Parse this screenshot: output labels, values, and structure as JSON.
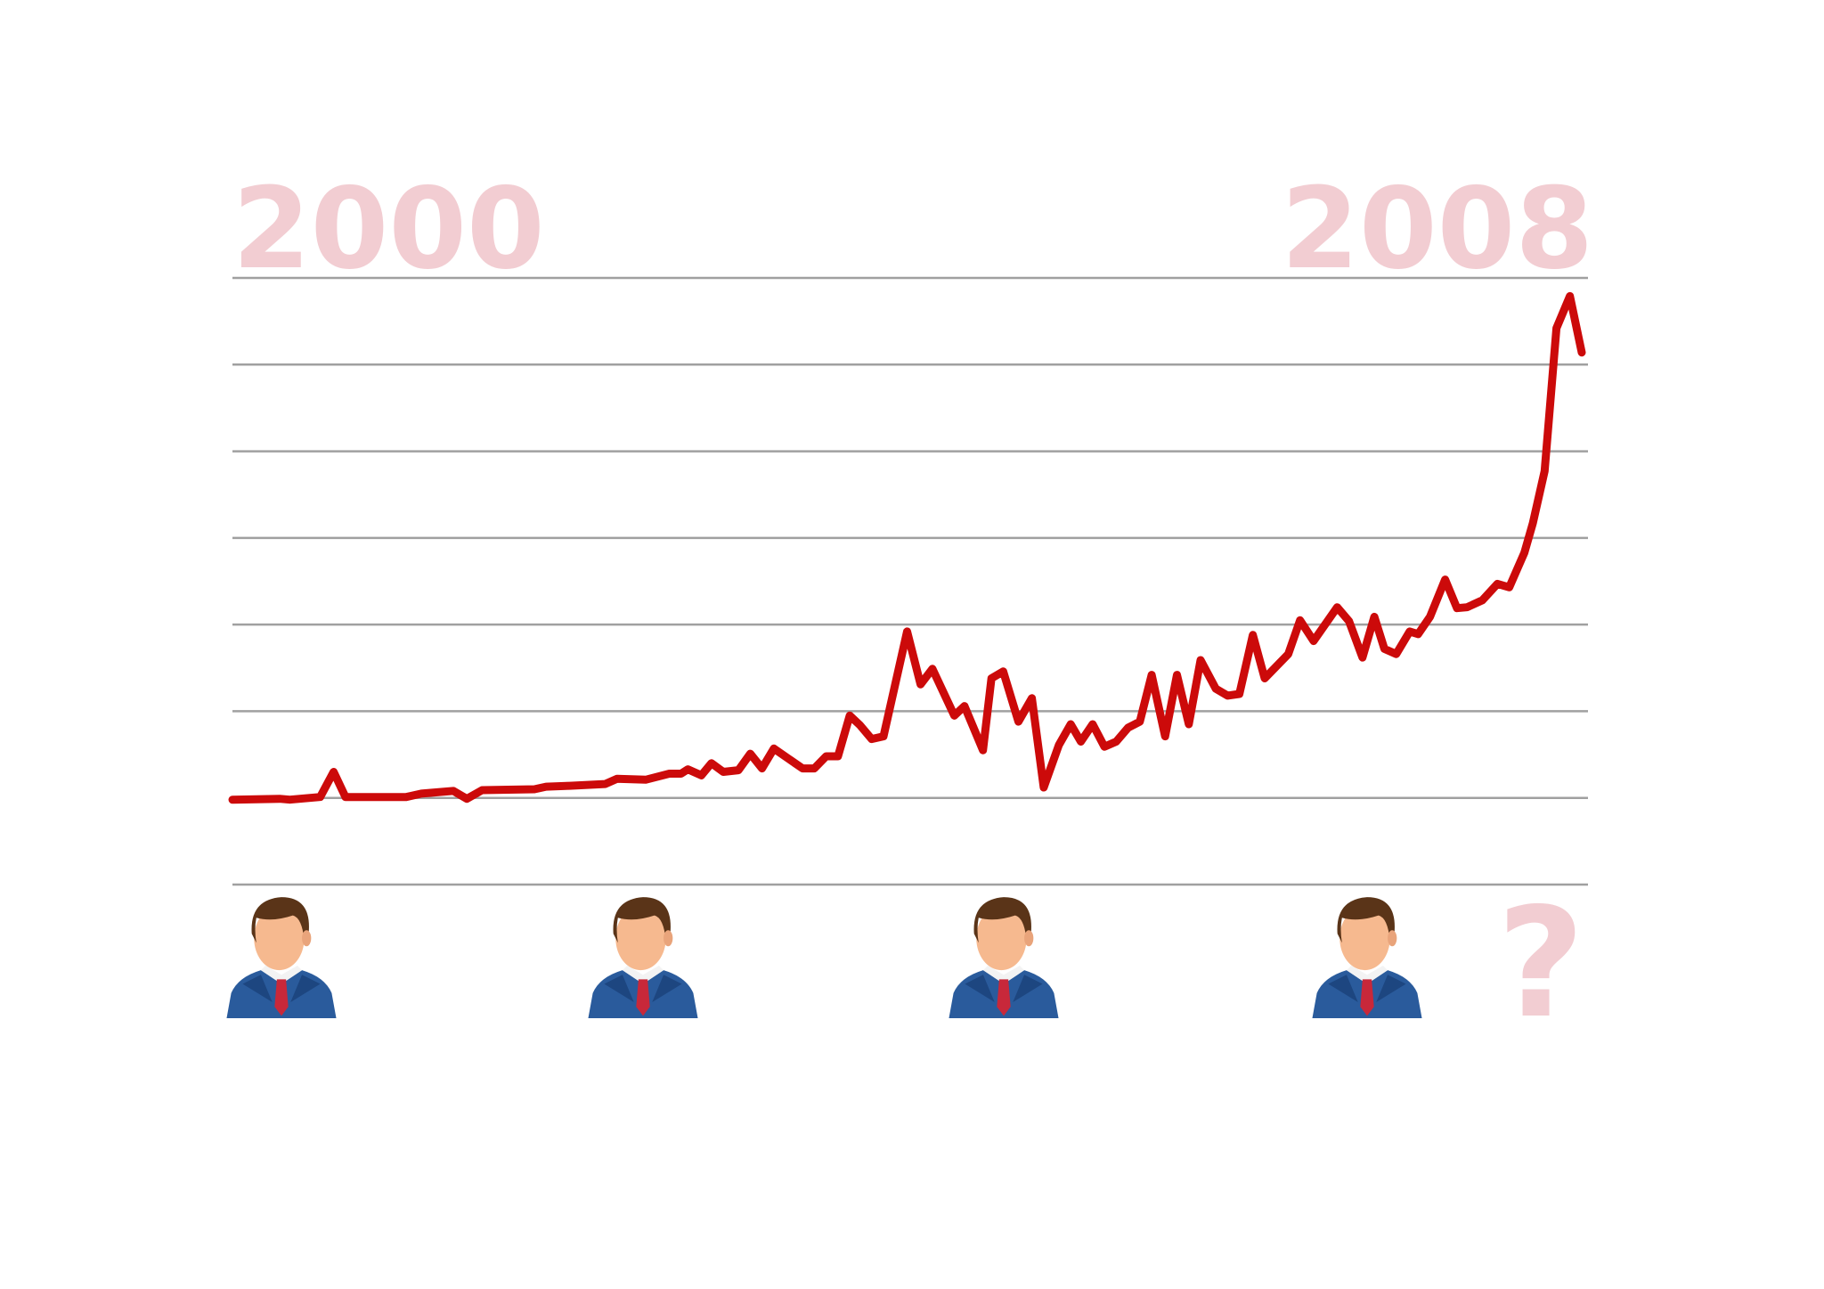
{
  "chart_data": {
    "type": "line",
    "color": "#cc0a0a",
    "grid": true,
    "annotation": "?",
    "x": [
      2000.0,
      2000.28,
      2000.34,
      2000.52,
      2000.6,
      2000.67,
      2001.03,
      2001.12,
      2001.31,
      2001.39,
      2001.48,
      2001.79,
      2001.86,
      2002.0,
      2002.21,
      2002.28,
      2002.45,
      2002.59,
      2002.66,
      2002.7,
      2002.78,
      2002.84,
      2002.91,
      2003.0,
      2003.07,
      2003.14,
      2003.21,
      2003.38,
      2003.45,
      2003.52,
      2003.59,
      2003.66,
      2003.72,
      2003.79,
      2003.86,
      2004.0,
      2004.08,
      2004.15,
      2004.28,
      2004.34,
      2004.45,
      2004.5,
      2004.57,
      2004.66,
      2004.74,
      2004.81,
      2004.9,
      2004.97,
      2005.03,
      2005.1,
      2005.17,
      2005.24,
      2005.31,
      2005.38,
      2005.45,
      2005.53,
      2005.6,
      2005.67,
      2005.74,
      2005.83,
      2005.9,
      2005.97,
      2006.05,
      2006.12,
      2006.26,
      2006.33,
      2006.41,
      2006.55,
      2006.62,
      2006.7,
      2006.77,
      2006.83,
      2006.9,
      2006.98,
      2007.03,
      2007.1,
      2007.19,
      2007.26,
      2007.32,
      2007.41,
      2007.5,
      2007.57,
      2007.66,
      2007.71,
      2007.78,
      2007.85,
      2007.93,
      2008.0
    ],
    "values": [
      0.98,
      0.99,
      0.98,
      1.01,
      1.3,
      1.01,
      1.01,
      1.05,
      1.08,
      0.99,
      1.09,
      1.1,
      1.13,
      1.14,
      1.16,
      1.22,
      1.21,
      1.28,
      1.28,
      1.33,
      1.26,
      1.4,
      1.3,
      1.32,
      1.51,
      1.34,
      1.57,
      1.34,
      1.34,
      1.48,
      1.48,
      1.95,
      1.84,
      1.68,
      1.71,
      2.92,
      2.31,
      2.49,
      1.95,
      2.06,
      1.55,
      2.38,
      2.46,
      1.88,
      2.15,
      1.12,
      1.61,
      1.85,
      1.65,
      1.85,
      1.59,
      1.65,
      1.81,
      1.88,
      2.42,
      1.71,
      2.42,
      1.85,
      2.59,
      2.26,
      2.18,
      2.2,
      2.88,
      2.38,
      2.66,
      3.05,
      2.81,
      3.2,
      3.04,
      2.62,
      3.09,
      2.72,
      2.66,
      2.92,
      2.89,
      3.09,
      3.52,
      3.19,
      3.2,
      3.28,
      3.47,
      3.43,
      3.83,
      4.17,
      4.77,
      6.42,
      6.79,
      6.14
    ],
    "xlim": [
      2000,
      2008
    ],
    "xticks": [
      2000,
      2008
    ],
    "ylim": [
      0,
      7
    ],
    "yticks": [
      0,
      1,
      2,
      3,
      4,
      5,
      6,
      7
    ]
  }
}
